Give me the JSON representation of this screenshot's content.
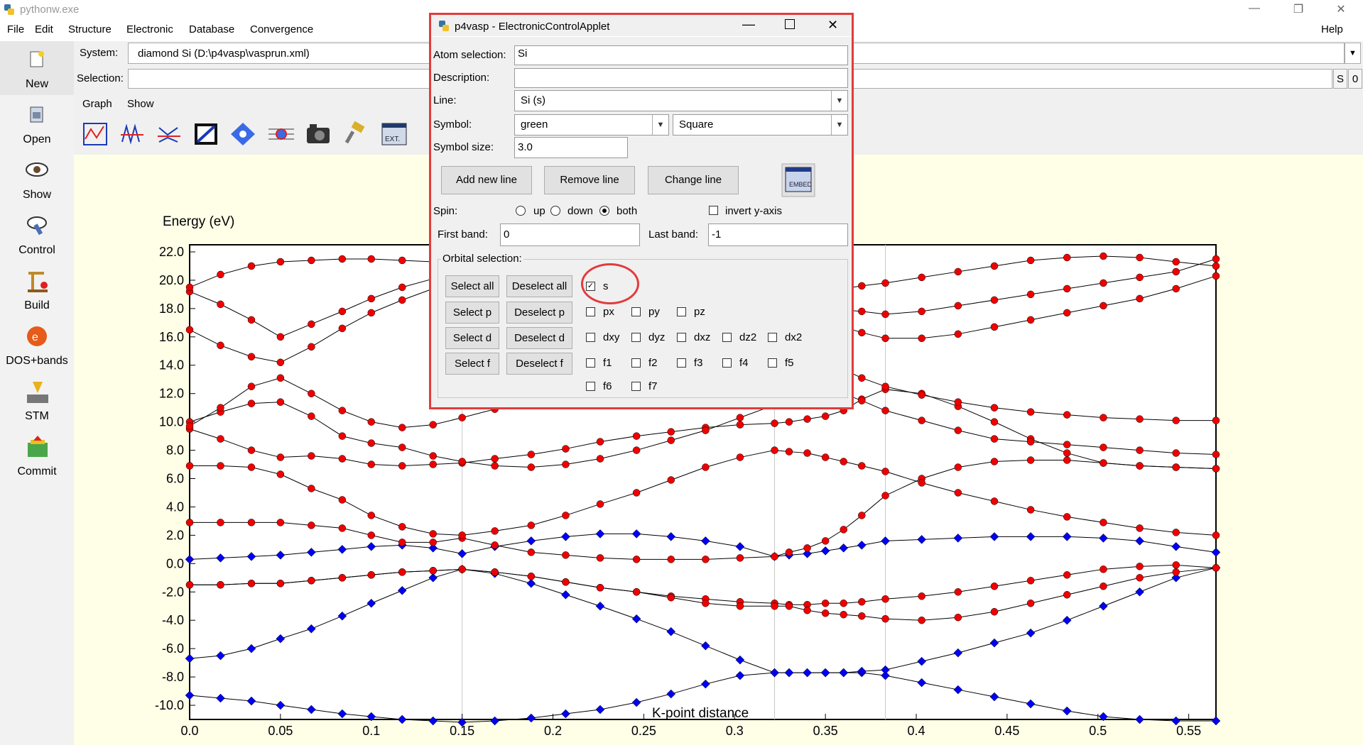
{
  "window": {
    "title": "pythonw.exe",
    "minimize": "—",
    "restore": "❐",
    "close": "✕"
  },
  "menu": {
    "left": [
      "File",
      "Edit",
      "Structure",
      "Electronic",
      "Database",
      "Convergence"
    ],
    "help": "Help"
  },
  "sidebar": [
    {
      "label": "New",
      "icon": "new-file-icon"
    },
    {
      "label": "Open",
      "icon": "open-icon"
    },
    {
      "label": "Show",
      "icon": "eye-icon"
    },
    {
      "label": "Control",
      "icon": "control-icon"
    },
    {
      "label": "Build",
      "icon": "build-icon"
    },
    {
      "label": "DOS+bands",
      "icon": "electron-icon"
    },
    {
      "label": "STM",
      "icon": "stm-icon"
    },
    {
      "label": "Commit",
      "icon": "commit-icon"
    }
  ],
  "main": {
    "system_label": "System:",
    "system_value": "diamond Si (D:\\p4vasp\\vasprun.xml)",
    "selection_label": "Selection:",
    "selection_value": "",
    "s_button": "S",
    "zero_button": "0",
    "graph_menu": "Graph",
    "show_menu": "Show",
    "toolbar_icons": [
      "graph-zoom-icon",
      "graph-lines-icon",
      "graph-shift-icon",
      "graph-crop-icon",
      "graph-move-icon",
      "graph-select-icon",
      "camera-icon",
      "pin-icon",
      "export-icon"
    ]
  },
  "dialog": {
    "title": "p4vasp - ElectronicControlApplet",
    "atom_selection_label": "Atom selection:",
    "atom_selection_value": "Si",
    "description_label": "Description:",
    "description_value": "",
    "line_label": "Line:",
    "line_value": "Si (s)",
    "symbol_label": "Symbol:",
    "symbol_color": "green",
    "symbol_shape": "Square",
    "symbol_size_label": "Symbol size:",
    "symbol_size_value": "3.0",
    "add_line": "Add new line",
    "remove_line": "Remove line",
    "change_line": "Change line",
    "spin_label": "Spin:",
    "spin_options": [
      "up",
      "down",
      "both"
    ],
    "spin_selected": "both",
    "invert_label": "invert y-axis",
    "first_band_label": "First band:",
    "first_band_value": "0",
    "last_band_label": "Last band:",
    "last_band_value": "-1",
    "orbital_legend": "Orbital selection:",
    "select_all": "Select all",
    "deselect_all": "Deselect all",
    "select_p": "Select p",
    "deselect_p": "Deselect p",
    "select_d": "Select d",
    "deselect_d": "Deselect d",
    "select_f": "Select f",
    "deselect_f": "Deselect f",
    "orbitals": {
      "s": [
        "s"
      ],
      "p": [
        "px",
        "py",
        "pz"
      ],
      "d": [
        "dxy",
        "dyz",
        "dxz",
        "dz2",
        "dx2"
      ],
      "f1": [
        "f1",
        "f2",
        "f3",
        "f4",
        "f5"
      ],
      "f2": [
        "f6",
        "f7"
      ]
    },
    "checked": [
      "s"
    ]
  },
  "chart_data": {
    "type": "line",
    "title": "",
    "ylabel": "Energy (eV)",
    "xlabel": "K-point distance",
    "xlim": [
      0.0,
      0.565
    ],
    "ylim": [
      -11.0,
      22.5
    ],
    "xticks": [
      "0.0",
      "0.05",
      "0.1",
      "0.15",
      "0.2",
      "0.25",
      "0.3",
      "0.35",
      "0.4",
      "0.45",
      "0.5",
      "0.55"
    ],
    "yticks": [
      "-10.0",
      "-8.0",
      "-6.0",
      "-4.0",
      "-2.0",
      "0.0",
      "2.0",
      "4.0",
      "6.0",
      "8.0",
      "10.0",
      "12.0",
      "14.0",
      "16.0",
      "18.0",
      "20.0",
      "22.0"
    ],
    "kpath_markers": [
      0.15,
      0.322,
      0.383
    ],
    "x": [
      0.0,
      0.017,
      0.034,
      0.05,
      0.067,
      0.084,
      0.1,
      0.117,
      0.134,
      0.15,
      0.168,
      0.188,
      0.207,
      0.226,
      0.246,
      0.265,
      0.284,
      0.303,
      0.322,
      0.33,
      0.34,
      0.35,
      0.36,
      0.37,
      0.383,
      0.403,
      0.423,
      0.443,
      0.463,
      0.483,
      0.503,
      0.523,
      0.543,
      0.565
    ],
    "series": [
      {
        "marker": "diamond",
        "color": "#0000ee",
        "values": [
          -9.3,
          -9.5,
          -9.7,
          -10.0,
          -10.3,
          -10.6,
          -10.8,
          -11.0,
          -11.1,
          -11.2,
          -11.1,
          -10.9,
          -10.6,
          -10.3,
          -9.8,
          -9.2,
          -8.5,
          -7.9,
          -7.7,
          -7.7,
          -7.7,
          -7.7,
          -7.7,
          -7.7,
          -7.9,
          -8.4,
          -8.9,
          -9.4,
          -9.9,
          -10.4,
          -10.8,
          -11.0,
          -11.1,
          -11.1
        ]
      },
      {
        "marker": "diamond",
        "color": "#0000ee",
        "values": [
          -6.7,
          -6.5,
          -6.0,
          -5.3,
          -4.6,
          -3.7,
          -2.8,
          -1.9,
          -1.0,
          -0.4,
          -0.7,
          -1.4,
          -2.2,
          -3.0,
          -3.9,
          -4.8,
          -5.8,
          -6.8,
          -7.7,
          -7.7,
          -7.7,
          -7.7,
          -7.7,
          -7.6,
          -7.5,
          -6.9,
          -6.3,
          -5.6,
          -4.9,
          -4.0,
          -3.0,
          -2.0,
          -1.0,
          -0.3
        ]
      },
      {
        "marker": "circle",
        "color": "#ee0000",
        "values": [
          -1.5,
          -1.5,
          -1.4,
          -1.4,
          -1.2,
          -1.0,
          -0.8,
          -0.6,
          -0.5,
          -0.4,
          -0.6,
          -0.9,
          -1.3,
          -1.7,
          -2.0,
          -2.3,
          -2.5,
          -2.7,
          -2.8,
          -2.9,
          -2.9,
          -2.8,
          -2.8,
          -2.7,
          -2.5,
          -2.3,
          -2.0,
          -1.6,
          -1.2,
          -0.8,
          -0.4,
          -0.2,
          -0.1,
          -0.3
        ]
      },
      {
        "marker": "circle",
        "color": "#ee0000",
        "values": [
          -1.5,
          -1.5,
          -1.4,
          -1.4,
          -1.2,
          -1.0,
          -0.8,
          -0.6,
          -0.5,
          -0.4,
          -0.6,
          -0.9,
          -1.3,
          -1.7,
          -2.0,
          -2.4,
          -2.8,
          -3.0,
          -3.0,
          -3.0,
          -3.3,
          -3.5,
          -3.6,
          -3.7,
          -3.9,
          -4.0,
          -3.8,
          -3.4,
          -2.8,
          -2.2,
          -1.6,
          -1.0,
          -0.6,
          -0.3
        ]
      },
      {
        "marker": "diamond",
        "color": "#0000ee",
        "values": [
          0.3,
          0.4,
          0.5,
          0.6,
          0.8,
          1.0,
          1.2,
          1.3,
          1.1,
          0.7,
          1.2,
          1.6,
          1.9,
          2.1,
          2.1,
          1.9,
          1.6,
          1.2,
          0.5,
          0.6,
          0.7,
          0.9,
          1.1,
          1.3,
          1.6,
          1.7,
          1.8,
          1.9,
          1.9,
          1.9,
          1.8,
          1.6,
          1.2,
          0.8
        ]
      },
      {
        "marker": "circle",
        "color": "#ee0000",
        "values": [
          2.9,
          2.9,
          2.9,
          2.9,
          2.7,
          2.5,
          2.0,
          1.5,
          1.5,
          1.8,
          1.3,
          0.8,
          0.6,
          0.4,
          0.3,
          0.3,
          0.3,
          0.4,
          0.5,
          0.8,
          1.1,
          1.6,
          2.4,
          3.4,
          4.8,
          6.0,
          6.8,
          7.2,
          7.3,
          7.3,
          7.1,
          6.9,
          6.8,
          6.7
        ]
      },
      {
        "marker": "circle",
        "color": "#ee0000",
        "values": [
          6.9,
          6.9,
          6.8,
          6.3,
          5.3,
          4.5,
          3.4,
          2.6,
          2.1,
          2.0,
          2.3,
          2.7,
          3.4,
          4.2,
          5.0,
          5.9,
          6.8,
          7.5,
          8.0,
          7.9,
          7.8,
          7.5,
          7.2,
          6.9,
          6.5,
          5.7,
          5.0,
          4.4,
          3.8,
          3.3,
          2.9,
          2.5,
          2.2,
          2.0
        ]
      },
      {
        "marker": "circle",
        "color": "#ee0000",
        "values": [
          9.5,
          8.8,
          8.0,
          7.5,
          7.6,
          7.4,
          7.0,
          6.9,
          7.0,
          7.1,
          7.4,
          7.7,
          8.1,
          8.6,
          9.0,
          9.3,
          9.6,
          9.8,
          9.9,
          10.0,
          10.2,
          10.4,
          10.8,
          11.6,
          12.3,
          12.0,
          11.1,
          10.0,
          8.8,
          7.8,
          7.1,
          6.9,
          6.8,
          6.7
        ]
      },
      {
        "marker": "circle",
        "color": "#ee0000",
        "values": [
          10.0,
          10.7,
          11.3,
          11.4,
          10.4,
          9.0,
          8.5,
          8.2,
          7.6,
          7.2,
          6.9,
          6.8,
          7.0,
          7.4,
          8.0,
          8.7,
          9.4,
          10.3,
          11.2,
          11.7,
          12.0,
          12.1,
          12.0,
          11.5,
          10.8,
          10.1,
          9.4,
          8.8,
          8.6,
          8.4,
          8.2,
          8.0,
          7.8,
          7.7
        ]
      },
      {
        "marker": "circle",
        "color": "#ee0000",
        "values": [
          9.7,
          11.0,
          12.5,
          13.1,
          12.0,
          10.8,
          10.0,
          9.6,
          9.8,
          10.3,
          10.9,
          11.6,
          12.3,
          13.0,
          13.6,
          14.2,
          14.6,
          15.0,
          15.3,
          14.9,
          14.6,
          14.2,
          13.7,
          13.1,
          12.5,
          11.9,
          11.4,
          11.0,
          10.7,
          10.5,
          10.3,
          10.2,
          10.1,
          10.1
        ]
      },
      {
        "marker": "circle",
        "color": "#ee0000",
        "values": [
          16.5,
          15.4,
          14.6,
          14.2,
          15.3,
          16.6,
          17.7,
          18.6,
          19.4,
          20.1,
          20.0,
          19.4,
          18.6,
          17.9,
          17.4,
          17.0,
          16.9,
          17.0,
          17.3,
          17.3,
          17.2,
          17.0,
          16.7,
          16.3,
          15.9,
          15.9,
          16.2,
          16.7,
          17.2,
          17.7,
          18.2,
          18.7,
          19.4,
          20.3
        ]
      },
      {
        "marker": "circle",
        "color": "#ee0000",
        "values": [
          19.2,
          18.3,
          17.2,
          16.0,
          16.9,
          17.8,
          18.7,
          19.5,
          20.1,
          20.6,
          20.8,
          20.7,
          20.4,
          20.0,
          19.5,
          19.0,
          18.6,
          18.3,
          18.2,
          18.1,
          18.1,
          18.0,
          17.9,
          17.8,
          17.6,
          17.8,
          18.2,
          18.6,
          19.0,
          19.4,
          19.8,
          20.2,
          20.6,
          21.5
        ]
      },
      {
        "marker": "circle",
        "color": "#ee0000",
        "values": [
          19.5,
          20.4,
          21.0,
          21.3,
          21.4,
          21.5,
          21.5,
          21.4,
          21.3,
          21.2,
          21.1,
          21.0,
          20.8,
          20.5,
          20.2,
          19.9,
          19.6,
          19.3,
          19.1,
          19.1,
          19.2,
          19.3,
          19.4,
          19.6,
          19.8,
          20.2,
          20.6,
          21.0,
          21.4,
          21.6,
          21.7,
          21.6,
          21.3,
          21.0
        ]
      }
    ]
  }
}
